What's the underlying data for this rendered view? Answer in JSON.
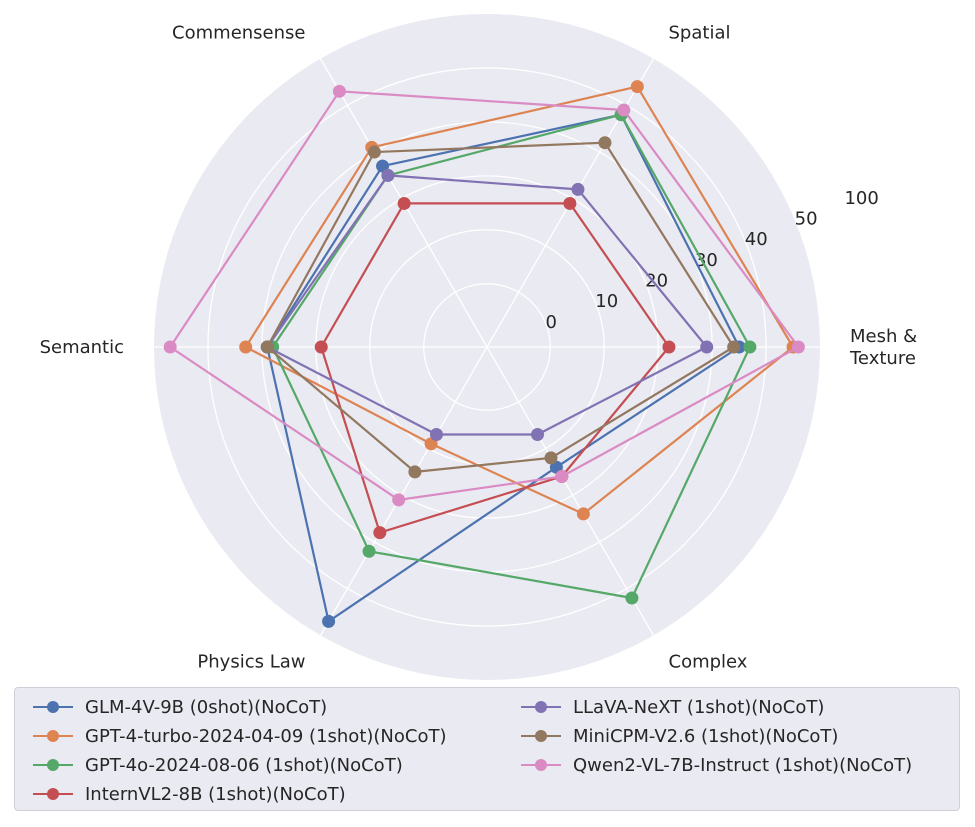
{
  "chart_data": {
    "type": "radar",
    "axes": [
      "Mesh &\nTexture",
      "Spatial",
      "Commensense",
      "Semantic",
      "Physics Law",
      "Complex"
    ],
    "r_ticks": [
      "0",
      "10",
      "20",
      "30",
      "40",
      "50",
      "100"
    ],
    "grid": true,
    "legend_position": "bottom",
    "series": [
      {
        "name": "GLM-4V-9B (0shot)(NoCoT)",
        "color": "#4c72b0",
        "values": [
          35,
          38,
          27,
          29,
          47,
          14
        ]
      },
      {
        "name": "GPT-4-turbo-2024-04-09 (1shot)(NoCoT)",
        "color": "#dd8452",
        "values": [
          45,
          44,
          31,
          33,
          9,
          24
        ]
      },
      {
        "name": "GPT-4o-2024-08-06 (1shot)(NoCoT)",
        "color": "#55a868",
        "values": [
          37,
          38,
          25,
          28,
          32,
          42
        ]
      },
      {
        "name": "InternVL2-8B (1shot)(NoCoT)",
        "color": "#c44e52",
        "values": [
          22,
          19,
          19,
          19,
          28,
          16
        ]
      },
      {
        "name": "LLaVA-NeXT (1shot)(NoCoT)",
        "color": "#8172b3",
        "values": [
          29,
          22,
          25,
          29,
          7,
          7
        ]
      },
      {
        "name": "MiniCPM-V2.6 (1shot)(NoCoT)",
        "color": "#937860",
        "values": [
          34,
          32,
          30,
          29,
          15,
          12
        ]
      },
      {
        "name": "Qwen2-VL-7B-Instruct (1shot)(NoCoT)",
        "color": "#da8bc3",
        "values": [
          46,
          39,
          43,
          47,
          21,
          16
        ]
      }
    ]
  }
}
